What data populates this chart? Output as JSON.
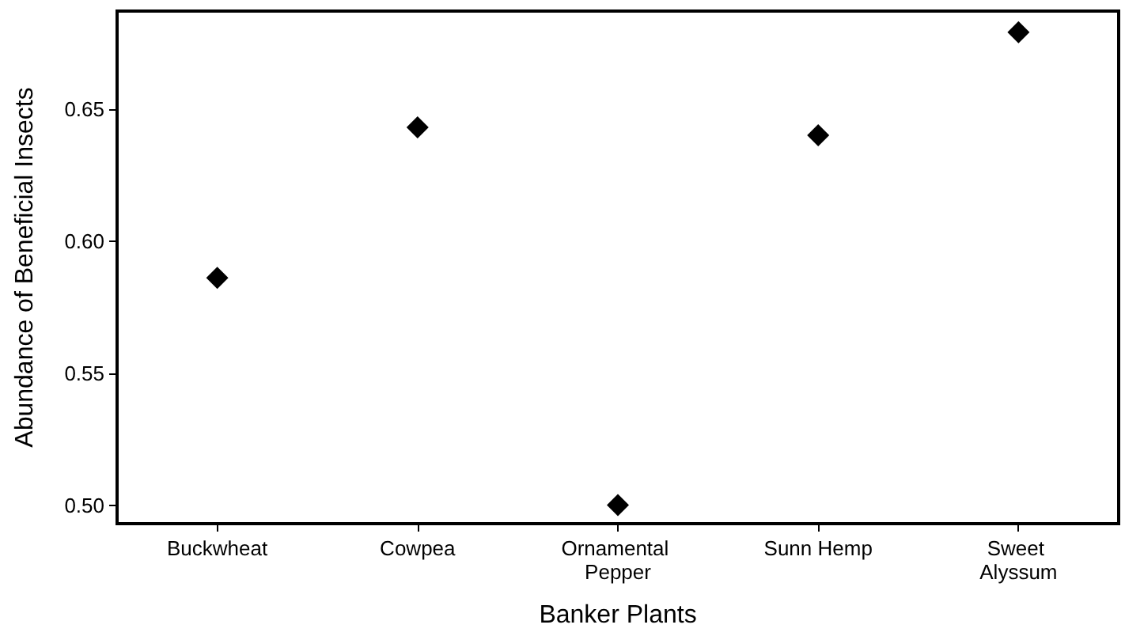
{
  "chart_data": {
    "type": "scatter",
    "xlabel": "Banker Plants",
    "ylabel": "Abundance of Beneficial Insects",
    "categories": [
      "Buckwheat",
      "Cowpea",
      "Ornamental Pepper",
      "Sunn Hemp",
      "Sweet Alyssum"
    ],
    "series": [
      {
        "color": "#000000",
        "values": [
          0.586,
          0.643,
          0.5,
          0.64,
          0.679
        ]
      }
    ],
    "ylim": [
      0.493,
      0.687
    ],
    "yticks": [
      {
        "value": 0.5,
        "label": "0.50"
      },
      0.55,
      {
        "value": 0.6,
        "label": "0.60"
      },
      0.65
    ],
    "grid": false,
    "marker": "diamond"
  }
}
